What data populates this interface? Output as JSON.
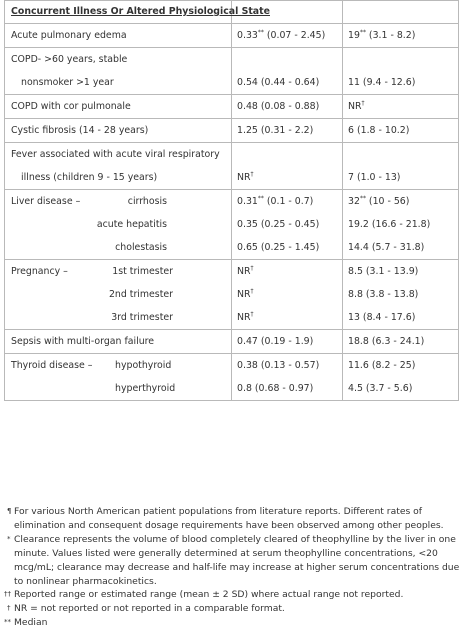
{
  "table": {
    "header": "Concurrent Illness Or Altered Physiological State",
    "rows": [
      {
        "c1": [
          "Acute pulmonary edema"
        ],
        "c2": [
          {
            "v": "0.33",
            "s": "**",
            "r": " (0.07 - 2.45)"
          }
        ],
        "c3": [
          {
            "v": "19",
            "s": "**",
            "r": " (3.1 - 8.2)"
          }
        ]
      },
      {
        "c1": [
          "COPD- >60 years, stable",
          "  nonsmoker >1 year"
        ],
        "c2": [
          {
            "v": "",
            "s": "",
            "r": ""
          },
          {
            "v": "0.54 (0.44 - 0.64)",
            "s": "",
            "r": ""
          }
        ],
        "c3": [
          {
            "v": "",
            "s": "",
            "r": ""
          },
          {
            "v": "11 (9.4 - 12.6)",
            "s": "",
            "r": ""
          }
        ]
      },
      {
        "c1": [
          "COPD with cor pulmonale"
        ],
        "c2": [
          {
            "v": "0.48 (0.08 - 0.88)",
            "s": "",
            "r": ""
          }
        ],
        "c3": [
          {
            "v": "NR",
            "s": "†",
            "r": ""
          }
        ]
      },
      {
        "c1": [
          "Cystic fibrosis (14 - 28 years)"
        ],
        "c2": [
          {
            "v": "1.25 (0.31 - 2.2)",
            "s": "",
            "r": ""
          }
        ],
        "c3": [
          {
            "v": "6 (1.8 - 10.2)",
            "s": "",
            "r": ""
          }
        ]
      },
      {
        "c1": [
          "Fever associated with acute viral respiratory",
          "  illness (children 9 - 15 years)"
        ],
        "c2": [
          {
            "v": "",
            "s": "",
            "r": ""
          },
          {
            "v": "NR",
            "s": "†",
            "r": ""
          }
        ],
        "c3": [
          {
            "v": "",
            "s": "",
            "r": ""
          },
          {
            "v": "7 (1.0 - 13)",
            "s": "",
            "r": ""
          }
        ]
      }
    ],
    "groups": [
      {
        "label": "Liver disease –",
        "subs": [
          "cirrhosis",
          "acute hepatitis",
          "cholestasis"
        ],
        "subRight": [
          163,
          163,
          163
        ],
        "c2": [
          {
            "v": "0.31",
            "s": "**",
            "r": " (0.1 - 0.7)"
          },
          {
            "v": "0.35 (0.25 - 0.45)",
            "s": "",
            "r": ""
          },
          {
            "v": "0.65 (0.25 - 1.45)",
            "s": "",
            "r": ""
          }
        ],
        "c3": [
          {
            "v": "32",
            "s": "**",
            "r": " (10 - 56)"
          },
          {
            "v": "19.2 (16.6 - 21.8)",
            "s": "",
            "r": ""
          },
          {
            "v": "14.4 (5.7 - 31.8)",
            "s": "",
            "r": ""
          }
        ]
      },
      {
        "label": "Pregnancy –",
        "subs": [
          "1st trimester",
          "2nd trimester",
          "3rd trimester"
        ],
        "subRight": [
          169,
          169,
          169
        ],
        "c2": [
          {
            "v": "NR",
            "s": "†",
            "r": ""
          },
          {
            "v": "NR",
            "s": "†",
            "r": ""
          },
          {
            "v": "NR",
            "s": "†",
            "r": ""
          }
        ],
        "c3": [
          {
            "v": "8.5 (3.1 - 13.9)",
            "s": "",
            "r": ""
          },
          {
            "v": "8.8 (3.8 - 13.8)",
            "s": "",
            "r": ""
          },
          {
            "v": "13 (8.4 - 17.6)",
            "s": "",
            "r": ""
          }
        ]
      }
    ],
    "sepsis": {
      "c1": "Sepsis with multi-organ failure",
      "c2": "0.47 (0.19 - 1.9)",
      "c3": "18.8 (6.3 - 24.1)"
    },
    "thyroid": {
      "label": "Thyroid disease –",
      "subs": [
        "hypothyroid",
        "hyperthyroid"
      ],
      "c2": [
        {
          "v": "0.38 (0.13 - 0.57)",
          "s": "",
          "r": ""
        },
        {
          "v": "0.8 (0.68 - 0.97)",
          "s": "",
          "r": ""
        }
      ],
      "c3": [
        {
          "v": "11.6 (8.2 - 25)",
          "s": "",
          "r": ""
        },
        {
          "v": "4.5 (3.7 - 5.6)",
          "s": "",
          "r": ""
        }
      ]
    }
  },
  "footnotes": [
    {
      "mark": "¶",
      "text": "For various North American patient populations from literature reports. Different rates of elimination and consequent dosage requirements have been observed among other peoples."
    },
    {
      "mark": "*",
      "text": "Clearance represents the volume of blood completely cleared of theophylline by the liver in one minute. Values listed were generally determined at serum theophylline concentrations, <20 mcg/mL; clearance may decrease and half-life may increase at higher serum concentrations due to nonlinear pharmacokinetics."
    },
    {
      "mark": "††",
      "text": "Reported range or estimated range (mean ± 2 SD) where actual range not reported."
    },
    {
      "mark": "†",
      "text": "NR = not reported or not reported in a comparable format."
    },
    {
      "mark": "**",
      "text": "Median"
    }
  ]
}
